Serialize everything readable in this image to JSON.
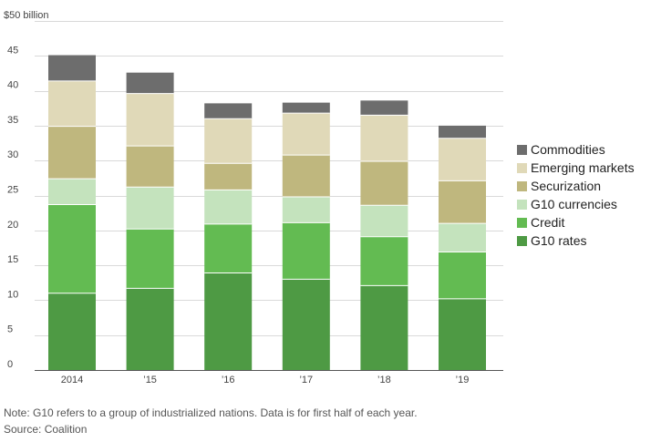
{
  "chart_data": {
    "type": "bar",
    "stacked": true,
    "title": "",
    "xlabel": "",
    "ylabel": "",
    "y_unit_label": "$50 billion",
    "ylim": [
      0,
      50
    ],
    "yticks": [
      0,
      5,
      10,
      15,
      20,
      25,
      30,
      35,
      40,
      45
    ],
    "ytick_labels": [
      "0",
      "5",
      "10",
      "15",
      "20",
      "25",
      "30",
      "35",
      "40",
      "45"
    ],
    "categories": [
      "2014",
      "’15",
      "’16",
      "’17",
      "’18",
      "’19"
    ],
    "legend_position": "right",
    "series": [
      {
        "name": "G10 rates",
        "color": "#4e9a44",
        "values": [
          11.0,
          11.7,
          13.9,
          13.0,
          12.1,
          10.2
        ]
      },
      {
        "name": "Credit",
        "color": "#63bb52",
        "values": [
          12.7,
          8.5,
          7.0,
          8.1,
          7.0,
          6.7
        ]
      },
      {
        "name": "G10 currencies",
        "color": "#c4e3bd",
        "values": [
          3.7,
          6.0,
          4.9,
          3.7,
          4.5,
          4.1
        ]
      },
      {
        "name": "Securization",
        "color": "#bfb77e",
        "values": [
          7.5,
          5.9,
          3.8,
          6.0,
          6.3,
          6.1
        ]
      },
      {
        "name": "Emerging markets",
        "color": "#e0d9b8",
        "values": [
          6.5,
          7.5,
          6.4,
          6.0,
          6.6,
          6.1
        ]
      },
      {
        "name": "Commodities",
        "color": "#6d6d6d",
        "values": [
          3.7,
          3.0,
          2.2,
          1.5,
          2.1,
          1.8
        ]
      }
    ]
  },
  "footnotes": {
    "note": "Note: G10 refers to a group of industrialized nations. Data is for first half of each year.",
    "source": "Source: Coalition"
  }
}
